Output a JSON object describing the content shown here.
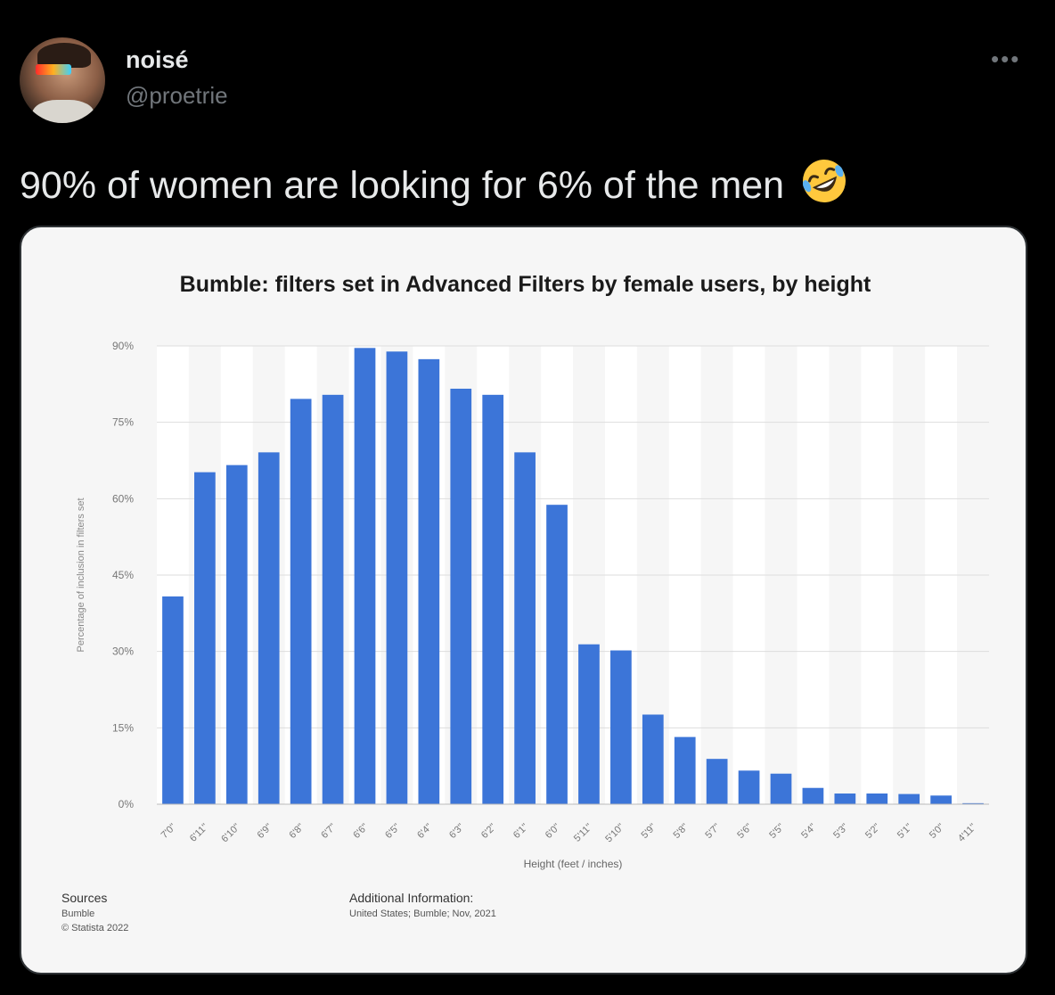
{
  "user": {
    "display_name": "noisé",
    "handle": "@proetrie"
  },
  "tweet": {
    "text": "90% of women are looking for 6% of the men",
    "emoji": "rolling-on-the-floor-laughing"
  },
  "colors": {
    "bar": "#3c75d8",
    "band_alt": "#ffffff",
    "grid": "#dddddd"
  },
  "chart_data": {
    "type": "bar",
    "title": "Bumble: filters set in Advanced Filters by female users, by height",
    "xlabel": "Height (feet / inches)",
    "ylabel": "Percentage of inclusion in filters set",
    "ylim": [
      0,
      90
    ],
    "yticks": [
      "0%",
      "15%",
      "30%",
      "45%",
      "60%",
      "75%",
      "90%"
    ],
    "ytick_values": [
      0,
      15,
      30,
      45,
      60,
      75,
      90
    ],
    "grid": true,
    "categories": [
      "7'0\"",
      "6'11\"",
      "6'10\"",
      "6'9\"",
      "6'8\"",
      "6'7\"",
      "6'6\"",
      "6'5\"",
      "6'4\"",
      "6'3\"",
      "6'2\"",
      "6'1\"",
      "6'0\"",
      "5'11\"",
      "5'10\"",
      "5'9\"",
      "5'8\"",
      "5'7\"",
      "5'6\"",
      "5'5\"",
      "5'4\"",
      "5'3\"",
      "5'2\"",
      "5'1\"",
      "5'0\"",
      "4'11\""
    ],
    "values": [
      40.8,
      65.2,
      66.6,
      69.1,
      79.6,
      80.4,
      89.6,
      88.9,
      87.4,
      81.6,
      80.4,
      69.1,
      58.8,
      31.4,
      30.2,
      17.6,
      13.2,
      8.9,
      6.6,
      6.0,
      3.2,
      2.1,
      2.1,
      2.0,
      1.7,
      0.2
    ]
  },
  "footer": {
    "sources_heading": "Sources",
    "sources_lines": [
      "Bumble",
      "© Statista 2022"
    ],
    "additional_heading": "Additional Information:",
    "additional_text": "United States; Bumble; Nov, 2021"
  }
}
